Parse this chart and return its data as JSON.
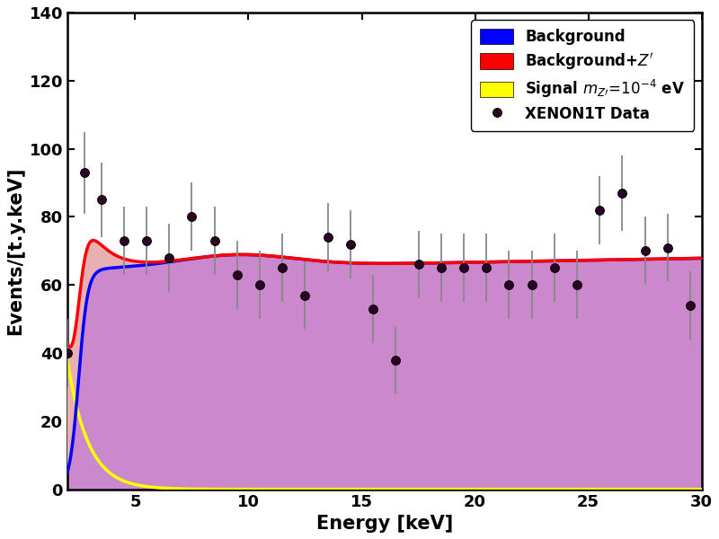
{
  "xlim": [
    2,
    30
  ],
  "ylim": [
    0,
    140
  ],
  "xlabel": "Energy [keV]",
  "ylabel": "Events/[t.y.keV]",
  "xticks": [
    5,
    10,
    15,
    20,
    25,
    30
  ],
  "yticks": [
    0,
    20,
    40,
    60,
    80,
    100,
    120,
    140
  ],
  "bg_color": "#0000ff",
  "signal_color": "#ffff00",
  "bgZ_color": "#ff0000",
  "fill_bg_color": "#cc88cc",
  "fill_bgZ_color": "#e8b0b0",
  "data_points_x": [
    2.0,
    2.75,
    3.5,
    4.5,
    5.5,
    6.5,
    7.5,
    8.5,
    9.5,
    10.5,
    11.5,
    12.5,
    13.5,
    14.5,
    15.5,
    16.5,
    17.5,
    18.5,
    19.5,
    20.5,
    21.5,
    22.5,
    23.5,
    24.5,
    25.5,
    26.5,
    27.5,
    28.5,
    29.5
  ],
  "data_points_y": [
    40,
    93,
    85,
    73,
    73,
    68,
    80,
    73,
    63,
    60,
    65,
    57,
    74,
    72,
    53,
    38,
    66,
    65,
    65,
    65,
    60,
    60,
    65,
    60,
    82,
    87,
    70,
    71,
    54
  ],
  "data_errors_lo": [
    10,
    12,
    11,
    10,
    10,
    10,
    10,
    10,
    10,
    10,
    10,
    10,
    10,
    10,
    10,
    10,
    10,
    10,
    10,
    10,
    10,
    10,
    10,
    10,
    10,
    11,
    10,
    10,
    10
  ],
  "data_errors_hi": [
    10,
    12,
    11,
    10,
    10,
    10,
    10,
    10,
    10,
    10,
    10,
    10,
    10,
    10,
    10,
    10,
    10,
    10,
    10,
    10,
    10,
    10,
    10,
    10,
    10,
    11,
    10,
    10,
    10
  ],
  "axis_fontsize": 15,
  "tick_fontsize": 13,
  "legend_fontsize": 12
}
